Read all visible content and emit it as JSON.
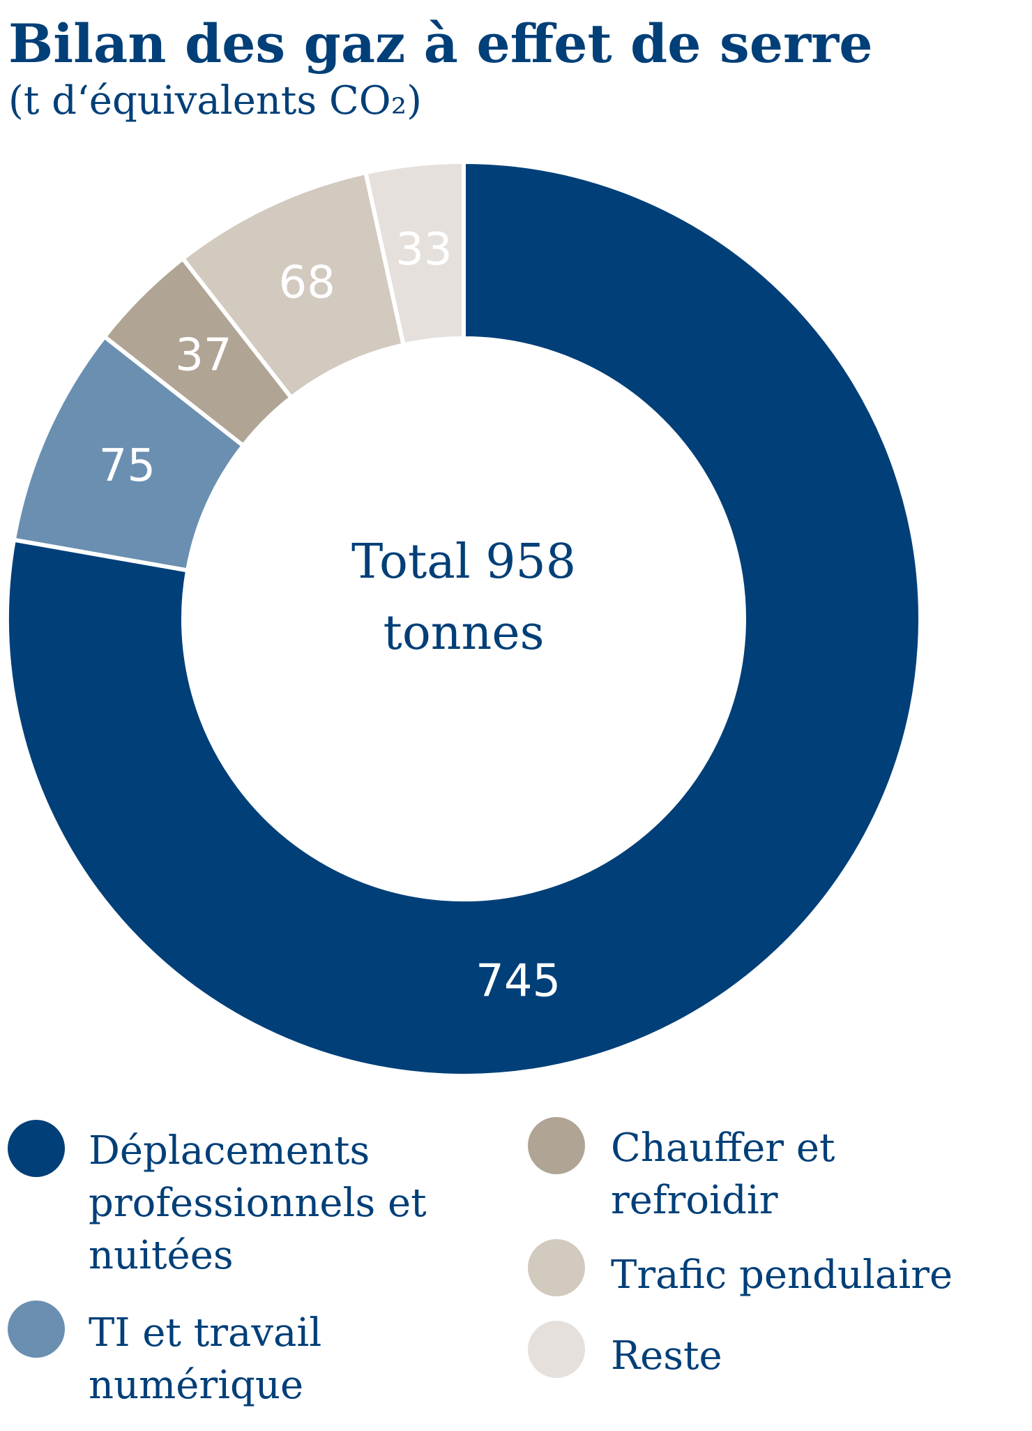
{
  "chart_data": {
    "type": "donut",
    "title": "Bilan des gaz à effet de serre",
    "subtitle": "(t d‘équivalents CO₂)",
    "center_label": "Total 958 tonnes",
    "categories": [
      "Déplacements professionnels et nuitées",
      "TI et travail numérique",
      "Chauffer et refroidir",
      "Trafic pendulaire",
      "Reste"
    ],
    "values": [
      745,
      75,
      37,
      68,
      33
    ],
    "colors": [
      "#003f78",
      "#6a8fb0",
      "#b0a494",
      "#d2c9bf",
      "#e5e0dc"
    ]
  }
}
